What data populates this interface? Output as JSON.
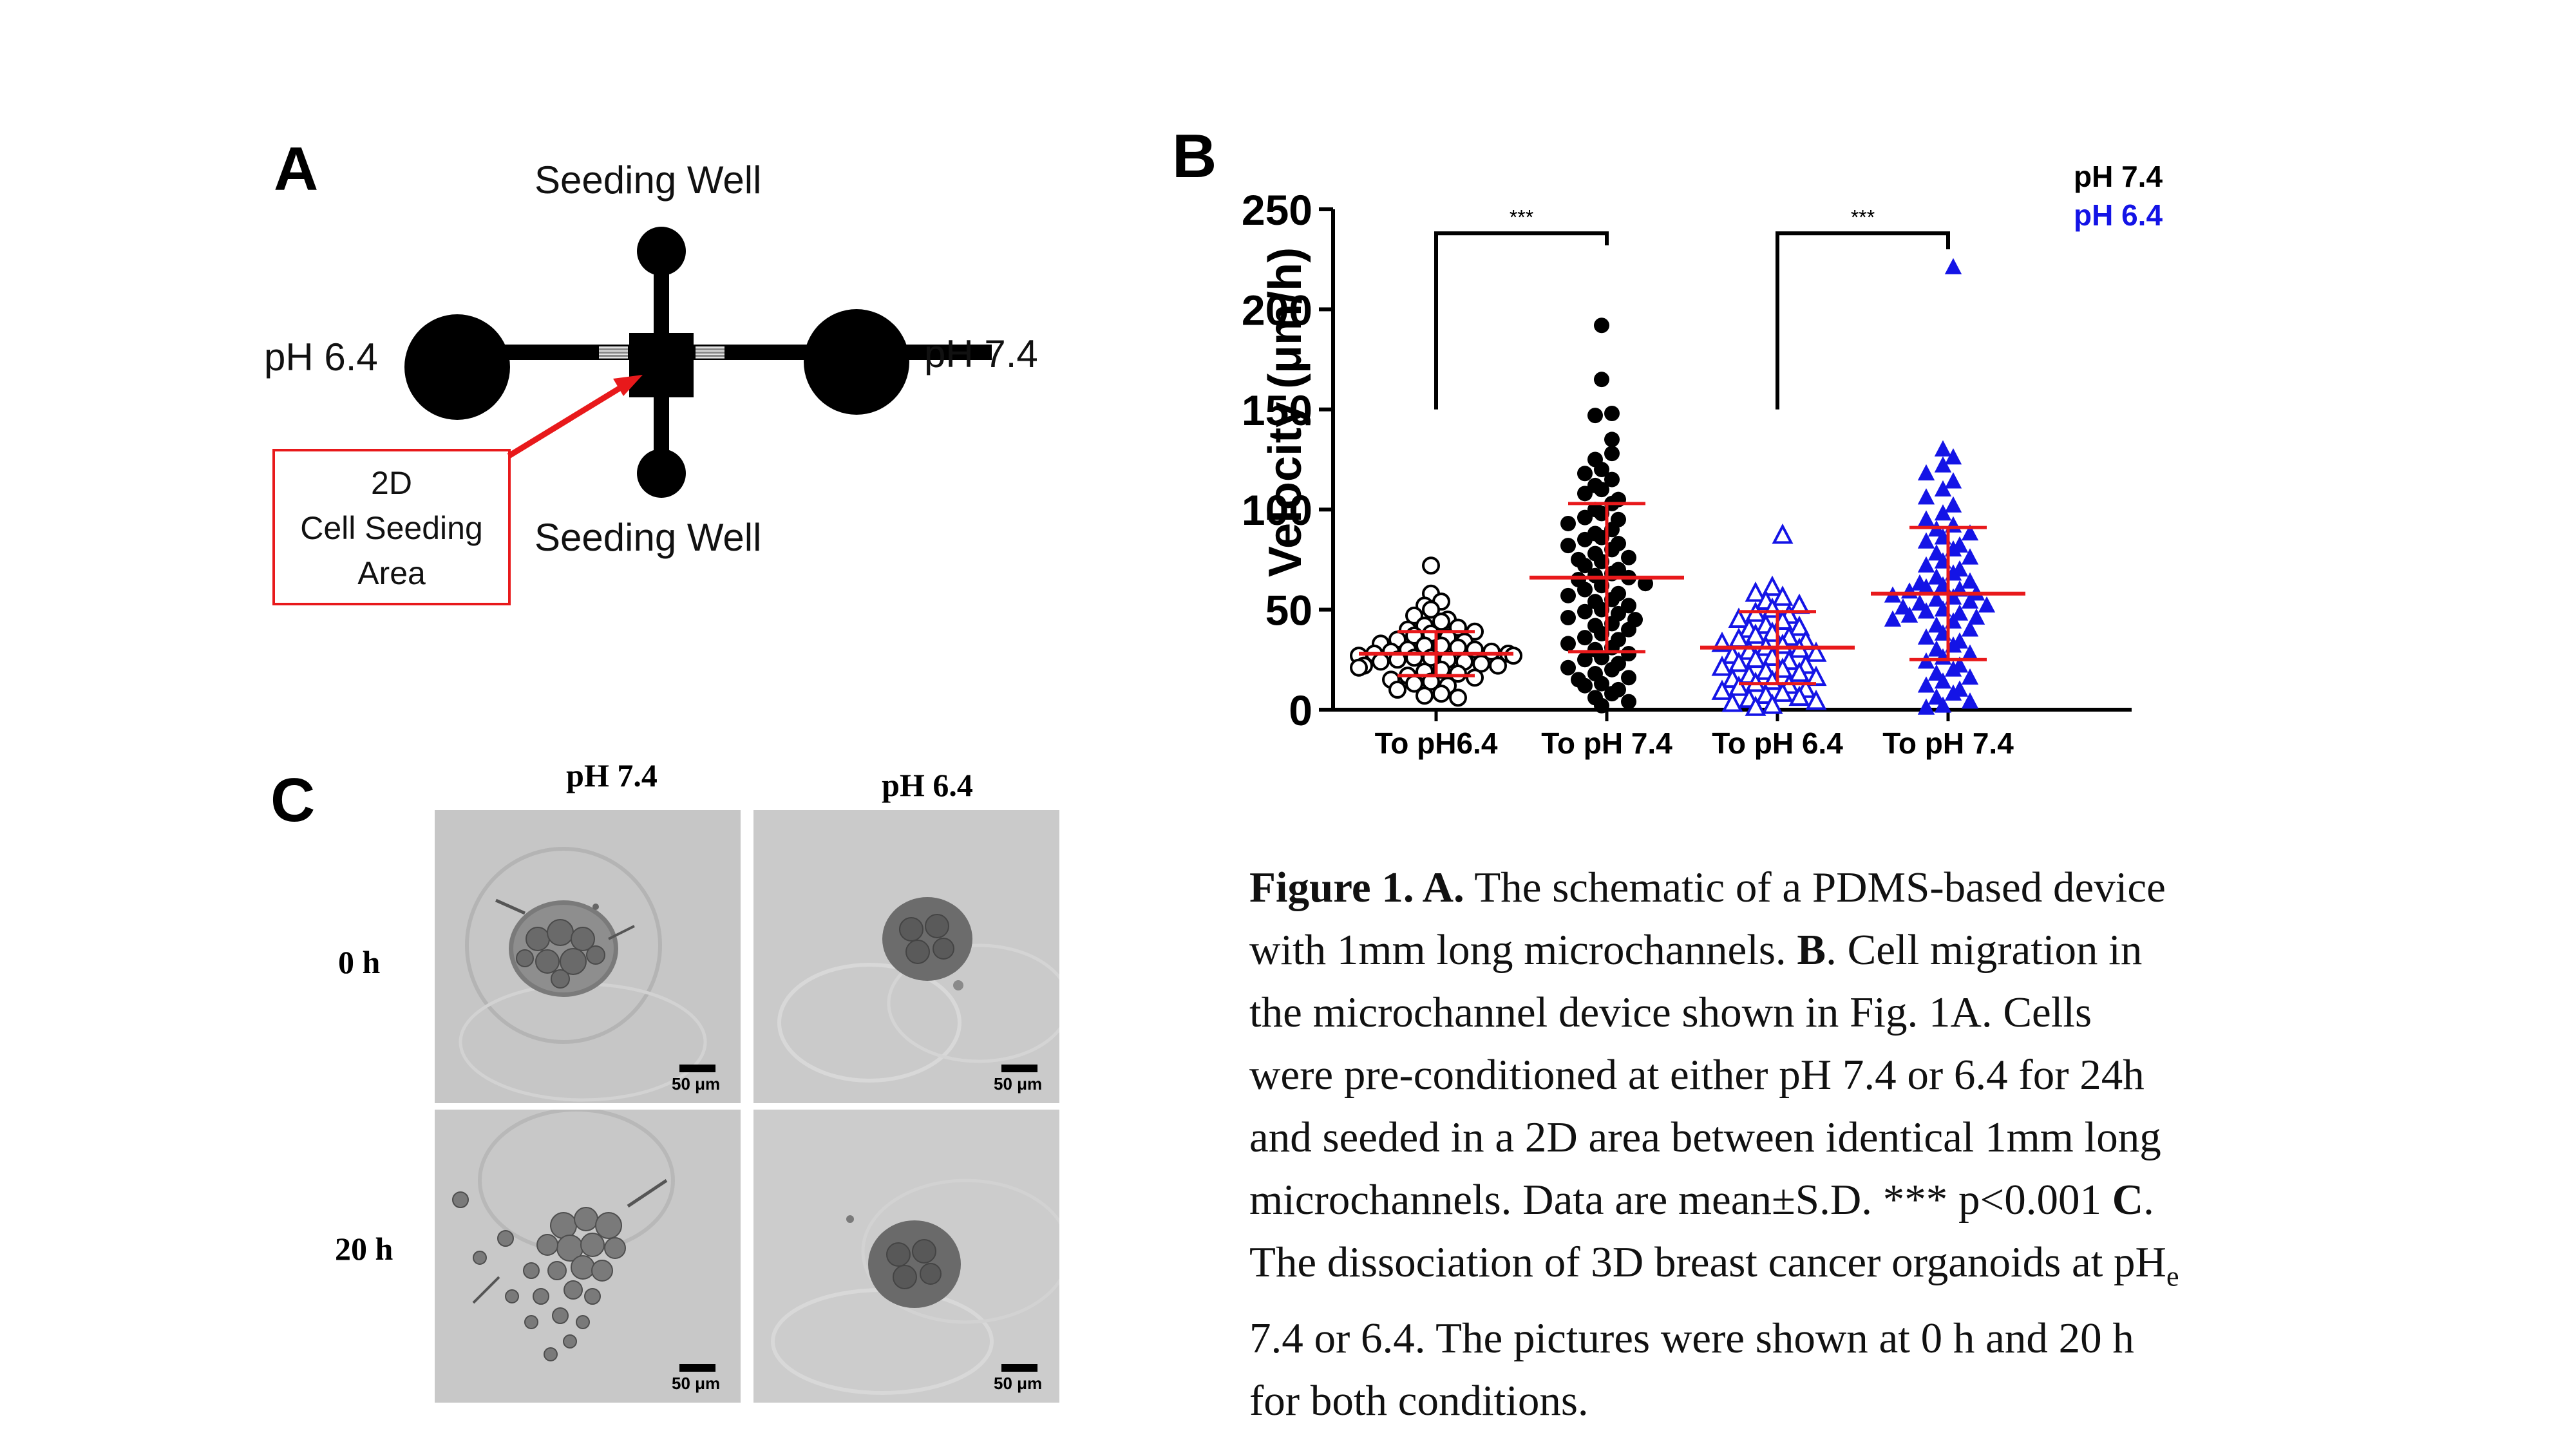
{
  "panel_a": {
    "letter": "A",
    "seeding_top": "Seeding Well",
    "seeding_bottom": "Seeding Well",
    "left_label": "pH 6.4",
    "right_label": "pH 7.4",
    "box_lines": [
      "2D",
      "Cell Seeding",
      "Area"
    ],
    "colors": {
      "device": "#000000",
      "arrow": "#e8191b",
      "box_border": "#e8191b"
    }
  },
  "panel_b": {
    "letter": "B",
    "sig_left": "***",
    "sig_right": "***",
    "legend": [
      {
        "label": "pH 7.4",
        "color": "#000000"
      },
      {
        "label": "pH 6.4",
        "color": "#1414e6"
      }
    ]
  },
  "chart_data": {
    "type": "scatter",
    "ylabel": "Velocity (μm/h)",
    "ylim": [
      0,
      250
    ],
    "yticks": [
      "0",
      "50",
      "100",
      "150",
      "200",
      "250"
    ],
    "categories": [
      "To pH6.4",
      "To pH 7.4",
      "To pH 6.4",
      "To pH 7.4"
    ],
    "series": [
      {
        "name": "pH 7.4",
        "color": "#000000",
        "marker": "circle-open",
        "category": 0,
        "mean": 28,
        "sd": 11,
        "values": [
          72,
          58,
          54,
          52,
          50,
          47,
          45,
          44,
          42,
          41,
          40,
          39,
          38,
          37,
          36,
          35,
          34,
          33,
          32,
          32,
          31,
          30,
          30,
          29,
          29,
          28,
          28,
          27,
          27,
          26,
          26,
          25,
          25,
          24,
          24,
          23,
          22,
          22,
          21,
          20,
          19,
          18,
          17,
          16,
          15,
          14,
          13,
          12,
          10,
          8,
          7,
          6
        ]
      },
      {
        "name": "pH 7.4",
        "color": "#000000",
        "marker": "circle-filled",
        "category": 1,
        "mean": 66,
        "sd": 37,
        "values": [
          192,
          165,
          148,
          147,
          135,
          128,
          125,
          120,
          118,
          115,
          112,
          110,
          108,
          105,
          103,
          100,
          98,
          96,
          95,
          93,
          90,
          88,
          86,
          85,
          83,
          82,
          80,
          78,
          76,
          75,
          74,
          72,
          70,
          68,
          67,
          66,
          65,
          63,
          62,
          60,
          58,
          57,
          55,
          54,
          52,
          50,
          49,
          48,
          46,
          45,
          43,
          42,
          40,
          38,
          36,
          35,
          33,
          31,
          30,
          28,
          26,
          25,
          23,
          21,
          20,
          18,
          16,
          15,
          13,
          12,
          10,
          8,
          6,
          4,
          2
        ]
      },
      {
        "name": "pH 6.4",
        "color": "#1414e6",
        "marker": "triangle-open",
        "category": 2,
        "mean": 31,
        "sd": 18,
        "values": [
          87,
          61,
          58,
          56,
          54,
          52,
          50,
          48,
          47,
          45,
          44,
          42,
          41,
          40,
          38,
          37,
          36,
          35,
          34,
          33,
          32,
          31,
          30,
          29,
          28,
          27,
          26,
          25,
          24,
          23,
          22,
          21,
          20,
          19,
          18,
          17,
          16,
          15,
          14,
          13,
          12,
          11,
          10,
          9,
          8,
          7,
          6,
          5,
          4,
          3,
          2,
          1
        ]
      },
      {
        "name": "pH 6.4",
        "color": "#1414e6",
        "marker": "triangle-filled",
        "category": 3,
        "mean": 58,
        "sd": 33,
        "values": [
          221,
          130,
          126,
          122,
          118,
          114,
          110,
          106,
          102,
          98,
          95,
          92,
          90,
          88,
          86,
          84,
          82,
          80,
          78,
          76,
          74,
          72,
          70,
          68,
          66,
          64,
          63,
          62,
          61,
          60,
          59,
          58,
          57,
          56,
          55,
          54,
          53,
          52,
          51,
          50,
          49,
          48,
          47,
          46,
          45,
          44,
          42,
          40,
          38,
          36,
          34,
          32,
          30,
          28,
          26,
          24,
          22,
          20,
          18,
          16,
          14,
          12,
          10,
          8,
          6,
          4,
          2,
          1
        ]
      }
    ],
    "error_bar_color": "#e8191b",
    "significance": [
      {
        "from": 0,
        "to": 1,
        "label": "***"
      },
      {
        "from": 2,
        "to": 3,
        "label": "***"
      }
    ]
  },
  "panel_c": {
    "letter": "C",
    "col_headers": [
      "pH 7.4",
      "pH 6.4"
    ],
    "row_labels": [
      "0 h",
      "20 h"
    ],
    "scale_text": "50 μm"
  },
  "caption": {
    "line1_bold": "Figure 1. A.",
    "line1_rest": " The schematic of a PDMS-based device",
    "line2_a": "with 1mm long microchannels. ",
    "line2_bold": "B",
    "line2_b": ". Cell migration in",
    "line3": "the microchannel device shown in Fig. 1A. Cells",
    "line4": "were pre-conditioned at either pH 7.4 or 6.4 for 24h",
    "line5": "and seeded in a 2D area between identical 1mm long",
    "line6_a": "microchannels. Data are mean±S.D. *** p<0.001 ",
    "line6_bold": "C",
    "line6_b": ".",
    "line7_a": "The dissociation of 3D breast cancer organoids at pH",
    "line7_sub": "e",
    "line8": "7.4 or 6.4. The pictures were shown at 0 h and 20 h",
    "line9": "for both conditions."
  }
}
